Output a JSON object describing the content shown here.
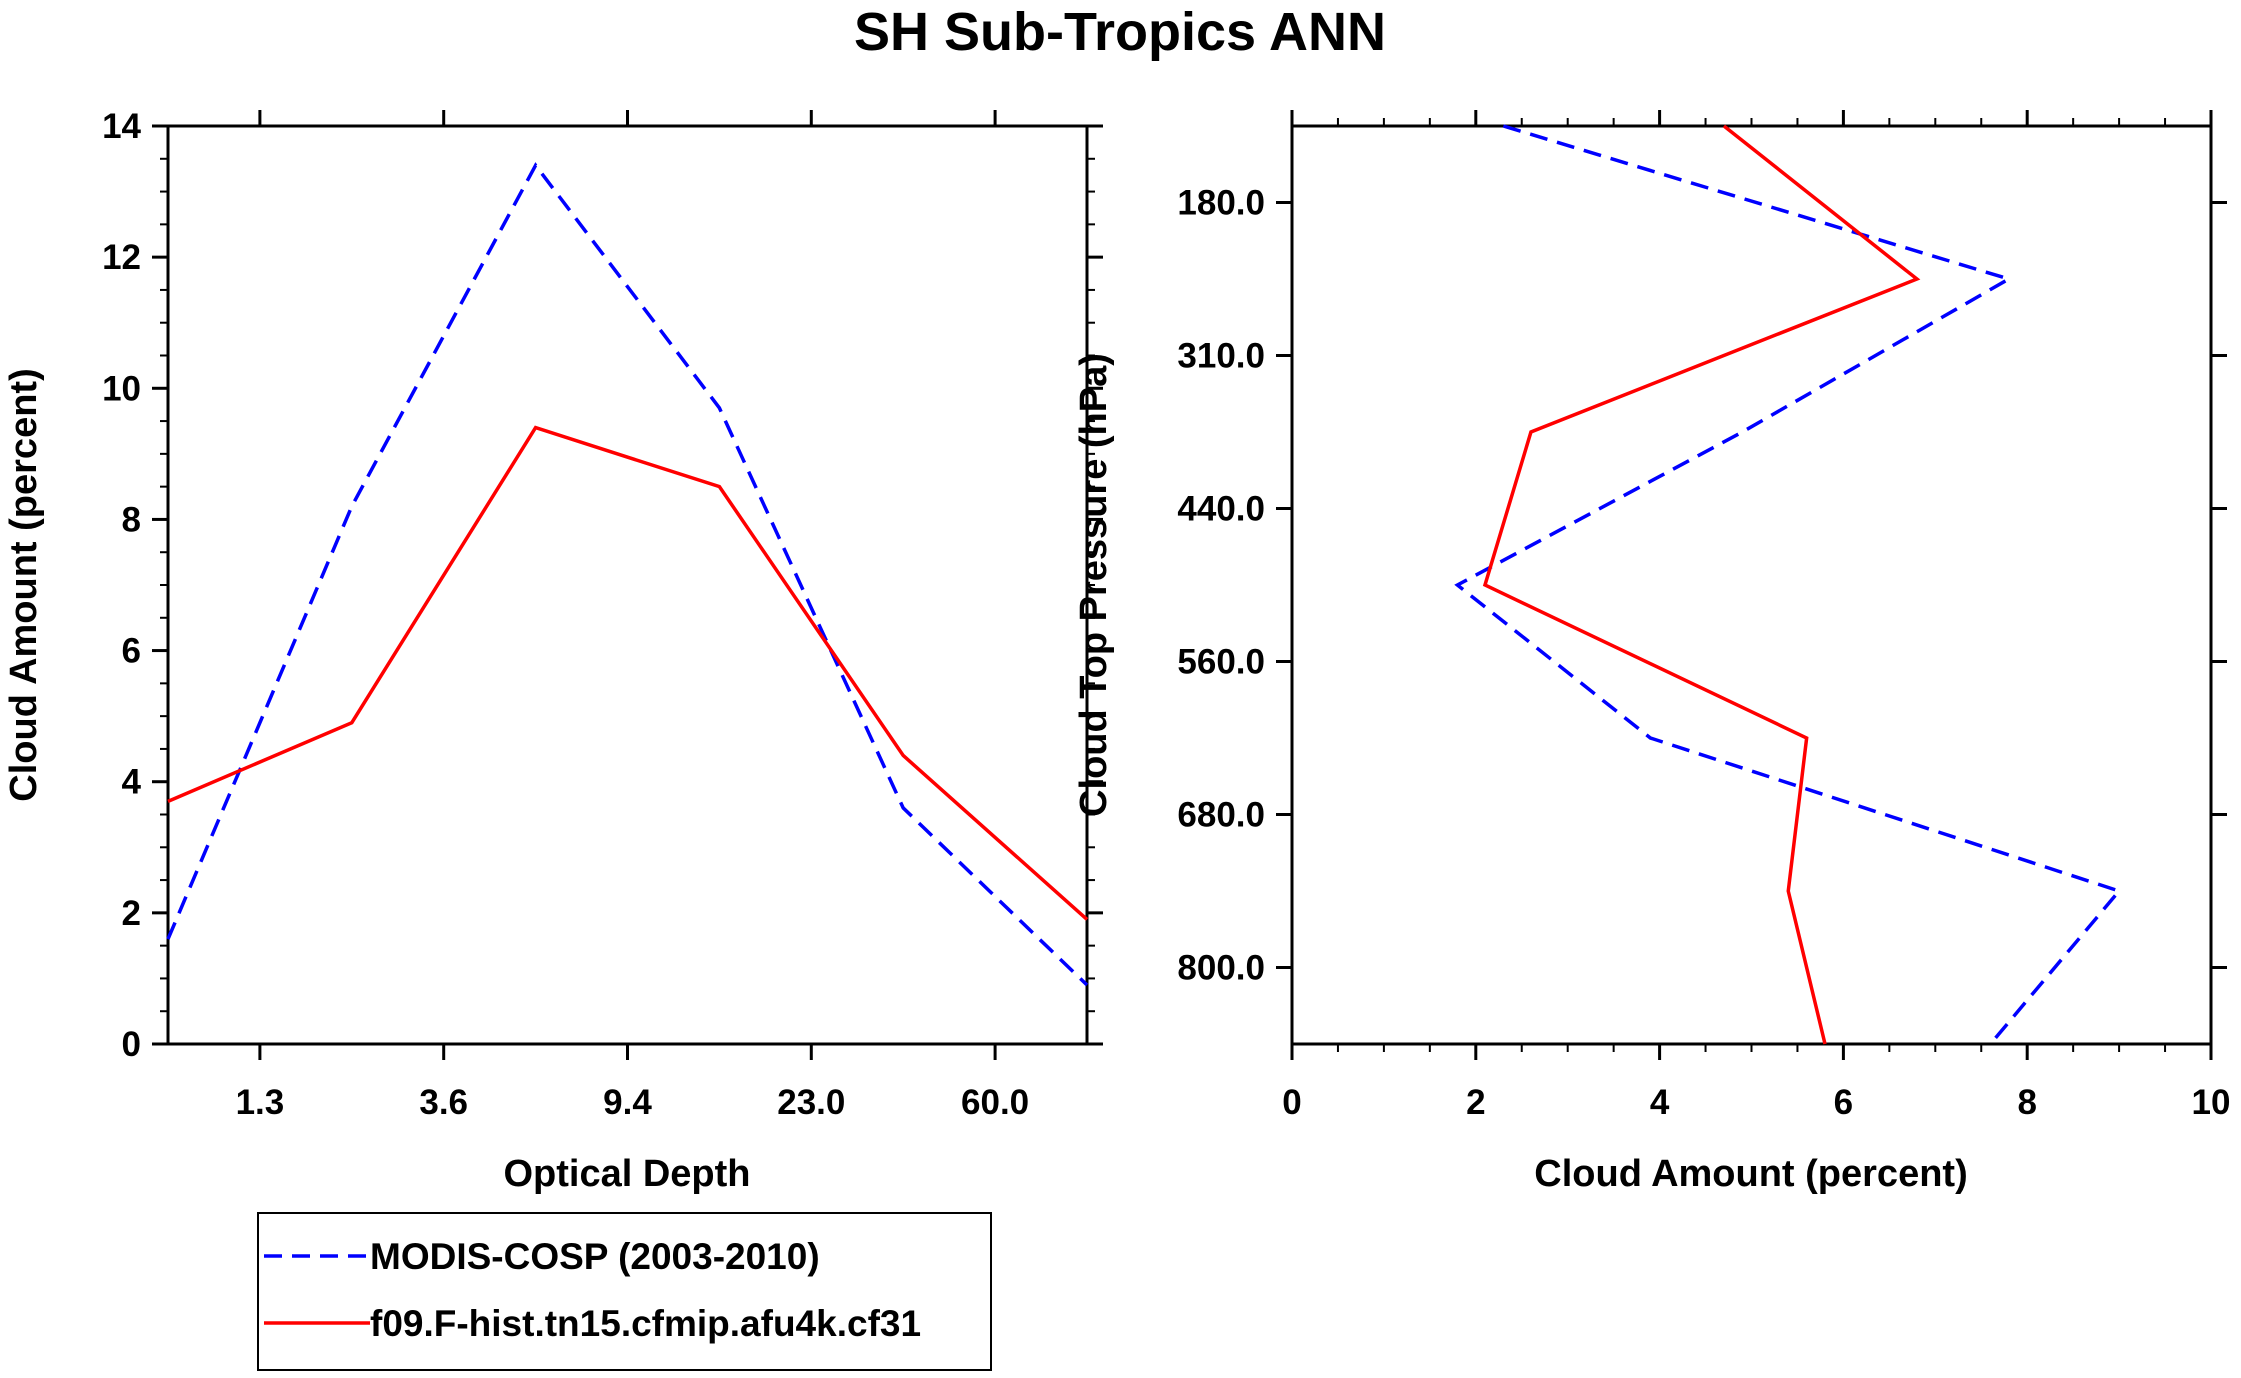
{
  "chart_data": [
    {
      "type": "line",
      "title": "SH Sub-Tropics ANN",
      "xlabel": "Optical Depth",
      "ylabel": "Cloud Amount (percent)",
      "ylim": [
        0,
        14
      ],
      "yticks": [
        "0",
        "2",
        "4",
        "6",
        "8",
        "10",
        "12",
        "14"
      ],
      "xticks": [
        "1.3",
        "3.6",
        "9.4",
        "23.0",
        "60.0"
      ],
      "x_bins": [
        0,
        1,
        2,
        3,
        4,
        5
      ],
      "series": [
        {
          "name": "MODIS-COSP (2003-2010)",
          "color": "#0000ff",
          "dash": "dashed",
          "values": [
            1.6,
            8.2,
            13.4,
            9.7,
            3.6,
            0.9
          ]
        },
        {
          "name": "f09.F-hist.tn15.cfmip.afu4k.cf31",
          "color": "#ff0000",
          "dash": "solid",
          "values": [
            3.7,
            4.9,
            9.4,
            8.5,
            4.4,
            1.9
          ]
        }
      ]
    },
    {
      "type": "line",
      "xlabel": "Cloud Amount (percent)",
      "ylabel": "Cloud Top Pressure (hPa)",
      "xlim": [
        0,
        10
      ],
      "xticks": [
        "0",
        "2",
        "4",
        "6",
        "8",
        "10"
      ],
      "yticks": [
        "180.0",
        "310.0",
        "440.0",
        "560.0",
        "680.0",
        "800.0"
      ],
      "pressure_levels": [
        0,
        1,
        2,
        3,
        4,
        5,
        6
      ],
      "series": [
        {
          "name": "MODIS-COSP (2003-2010)",
          "color": "#0000ff",
          "dash": "dashed",
          "values": [
            2.3,
            7.8,
            4.9,
            1.8,
            3.9,
            9.0,
            7.6
          ]
        },
        {
          "name": "f09.F-hist.tn15.cfmip.afu4k.cf31",
          "color": "#ff0000",
          "dash": "solid",
          "values": [
            4.7,
            6.8,
            2.6,
            2.1,
            5.6,
            5.4,
            5.8
          ]
        }
      ]
    }
  ],
  "legend": {
    "items": [
      {
        "label": "MODIS-COSP (2003-2010)",
        "color": "#0000ff",
        "dash": "dashed"
      },
      {
        "label": "f09.F-hist.tn15.cfmip.afu4k.cf31",
        "color": "#ff0000",
        "dash": "solid"
      }
    ]
  }
}
